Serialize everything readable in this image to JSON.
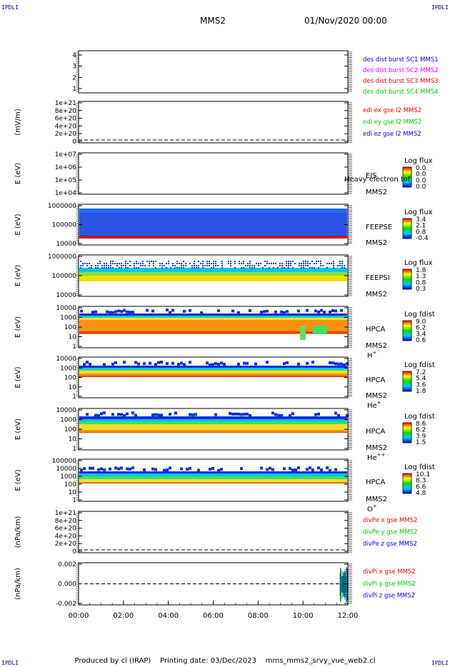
{
  "corner_label": "IPDLI",
  "header": {
    "spacecraft": "MMS2",
    "date": "01/Nov/2020 00:00"
  },
  "footer": {
    "produced_by": "Produced by cl (IRAP)",
    "printing_date": "Printing date: 03/Dec/2023",
    "filename": "mms_mms2_srvy_vue_web2.cl"
  },
  "time_axis": [
    "00:00",
    "02:00",
    "04:00",
    "06:00",
    "08:00",
    "10:00",
    "12:00"
  ],
  "chart_data": [
    {
      "type": "line",
      "ylabel": "",
      "ylim": [
        0.5,
        4.5
      ],
      "yticks": [
        "4",
        "3",
        "2",
        "1"
      ],
      "legend": [
        {
          "text": "des dist burst SC1 MMS1",
          "color": "#0000ff"
        },
        {
          "text": "des dist burst SC2 MMS2",
          "color": "#ff00ff"
        },
        {
          "text": "des dist burst SC3 MMS3",
          "color": "#ff0000"
        },
        {
          "text": "des dist burst SC4 MMS4",
          "color": "#00cc00"
        }
      ]
    },
    {
      "type": "line",
      "ylabel": "(mV/m)",
      "yticks": [
        "1e+21",
        "8e+20",
        "6e+20",
        "4e+20",
        "2e+20",
        "0"
      ],
      "legend": [
        {
          "text": "edi ex gse l2 MMS2",
          "color": "#ff0000"
        },
        {
          "text": "edi ey gse l2 MMS2",
          "color": "#00cc00"
        },
        {
          "text": "edi ez gse l2 MMS2",
          "color": "#0000ff"
        }
      ]
    },
    {
      "type": "heatmap",
      "ylabel": "E (eV)",
      "yticks": [
        "1e+07",
        "1e+06",
        "1e+05",
        "1e+04"
      ],
      "inst": [
        "EIS",
        "MMS2"
      ],
      "overlay": "Heavy electron tof",
      "cbar_title": "Log flux",
      "cbar_ticks": [
        "0.0",
        "0.0",
        "0.0",
        "0.0"
      ]
    },
    {
      "type": "heatmap",
      "ylabel": "E (eV)",
      "yticks": [
        "1000000",
        "100000",
        "10000"
      ],
      "inst": [
        "FEEPSE",
        "MMS2"
      ],
      "cbar_title": "Log flux",
      "cbar_ticks": [
        "3.4",
        "2.1",
        "0.8",
        "-0.4"
      ]
    },
    {
      "type": "heatmap",
      "ylabel": "E (eV)",
      "yticks": [
        "1000000",
        "100000",
        "10000"
      ],
      "inst": [
        "FEEPSI",
        "MMS2"
      ],
      "cbar_title": "Log flux",
      "cbar_ticks": [
        "1.8",
        "1.3",
        "0.8",
        "0.3"
      ]
    },
    {
      "type": "heatmap",
      "ylabel": "E (eV)",
      "yticks": [
        "10000",
        "1000",
        "100",
        "10",
        "1"
      ],
      "inst": [
        "HPCA",
        "MMS2"
      ],
      "species": "H",
      "charge": "+",
      "cbar_title": "Log fdist",
      "cbar_ticks": [
        "9.0",
        "6.2",
        "3.4",
        "0.6"
      ]
    },
    {
      "type": "heatmap",
      "ylabel": "E (eV)",
      "yticks": [
        "10000",
        "1000",
        "100",
        "10",
        "1"
      ],
      "inst": [
        "HPCA",
        "MMS2"
      ],
      "species": "He",
      "charge": "+",
      "cbar_title": "Log fdist",
      "cbar_ticks": [
        "7.2",
        "5.4",
        "3.6",
        "1.8"
      ]
    },
    {
      "type": "heatmap",
      "ylabel": "E (eV)",
      "yticks": [
        "10000",
        "1000",
        "100",
        "10",
        "1"
      ],
      "inst": [
        "HPCA",
        "MMS2"
      ],
      "species": "He",
      "charge": "++",
      "cbar_title": "Log fdist",
      "cbar_ticks": [
        "8.6",
        "6.2",
        "3.9",
        "1.5"
      ]
    },
    {
      "type": "heatmap",
      "ylabel": "E (eV)",
      "yticks": [
        "100000",
        "10000",
        "1000",
        "100",
        "10",
        "1"
      ],
      "inst": [
        "HPCA",
        "MMS2"
      ],
      "species": "O",
      "charge": "+",
      "cbar_title": "Log fdist",
      "cbar_ticks": [
        "10.1",
        "8.3",
        "6.6",
        "4.8"
      ]
    },
    {
      "type": "line",
      "ylabel": "(nPa/km)",
      "yticks": [
        "1e+21",
        "8e+20",
        "6e+20",
        "4e+20",
        "2e+20",
        "0"
      ],
      "legend": [
        {
          "text": "divPe x gse MMS2",
          "color": "#ff0000"
        },
        {
          "text": "divPe y gse MMS2",
          "color": "#00cc00"
        },
        {
          "text": "divPe z gse MMS2",
          "color": "#0000ff"
        }
      ]
    },
    {
      "type": "line",
      "ylabel": "(nPa/km)",
      "ylim": [
        -0.0035,
        0.0035
      ],
      "yticks": [
        "0.002",
        "0.000",
        "-0.002"
      ],
      "legend": [
        {
          "text": "divPi x gse MMS2",
          "color": "#ff0000"
        },
        {
          "text": "divPi y gse MMS2",
          "color": "#00cc00"
        },
        {
          "text": "divPi z gse MMS2",
          "color": "#0000ff"
        }
      ]
    }
  ]
}
